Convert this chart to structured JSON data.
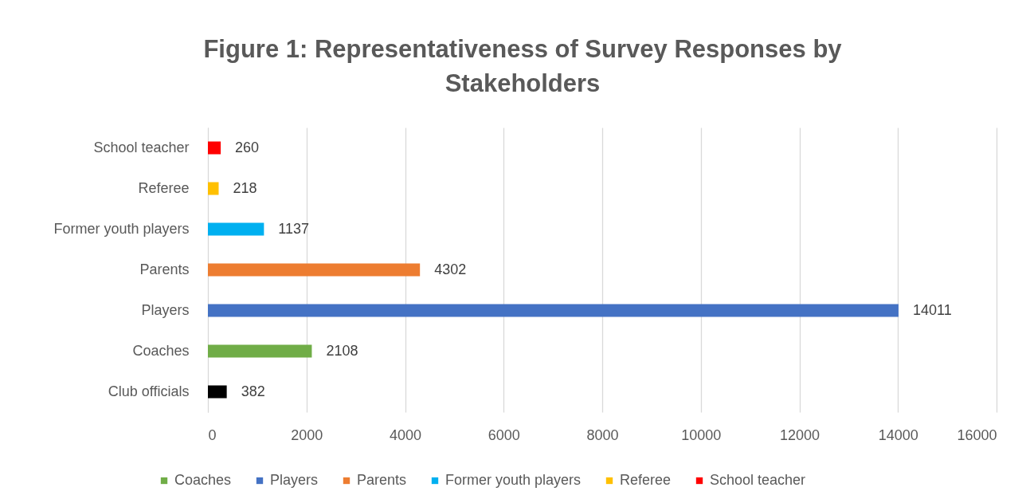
{
  "chart_data": {
    "type": "bar",
    "orientation": "horizontal",
    "title": "Figure 1: Representativeness of Survey Responses by Stakeholders",
    "categories": [
      "School teacher",
      "Referee",
      "Former youth players",
      "Parents",
      "Players",
      "Coaches",
      "Club officials"
    ],
    "series": [
      {
        "color": "#000000",
        "values": [
          null,
          null,
          null,
          null,
          null,
          null,
          382
        ]
      },
      {
        "name": "Coaches",
        "color": "#70ad47",
        "values": [
          null,
          null,
          null,
          null,
          null,
          2108,
          null
        ]
      },
      {
        "name": "Players",
        "color": "#4472c4",
        "values": [
          null,
          null,
          null,
          null,
          14011,
          null,
          null
        ]
      },
      {
        "name": "Parents",
        "color": "#ed7d31",
        "values": [
          null,
          null,
          null,
          4302,
          null,
          null,
          null
        ]
      },
      {
        "name": "Former youth players",
        "color": "#00b0f0",
        "values": [
          null,
          null,
          1137,
          null,
          null,
          null,
          null
        ]
      },
      {
        "name": "Referee",
        "color": "#ffc000",
        "values": [
          null,
          218,
          null,
          null,
          null,
          null,
          null
        ]
      },
      {
        "name": "School teacher",
        "color": "#ff0000",
        "values": [
          260,
          null,
          null,
          null,
          null,
          null,
          null
        ]
      }
    ],
    "xlim": [
      0,
      16000
    ],
    "xticks": [
      0,
      2000,
      4000,
      6000,
      8000,
      10000,
      12000,
      14000,
      16000
    ],
    "grid": "x",
    "legend": "bottom",
    "data_labels": true
  }
}
